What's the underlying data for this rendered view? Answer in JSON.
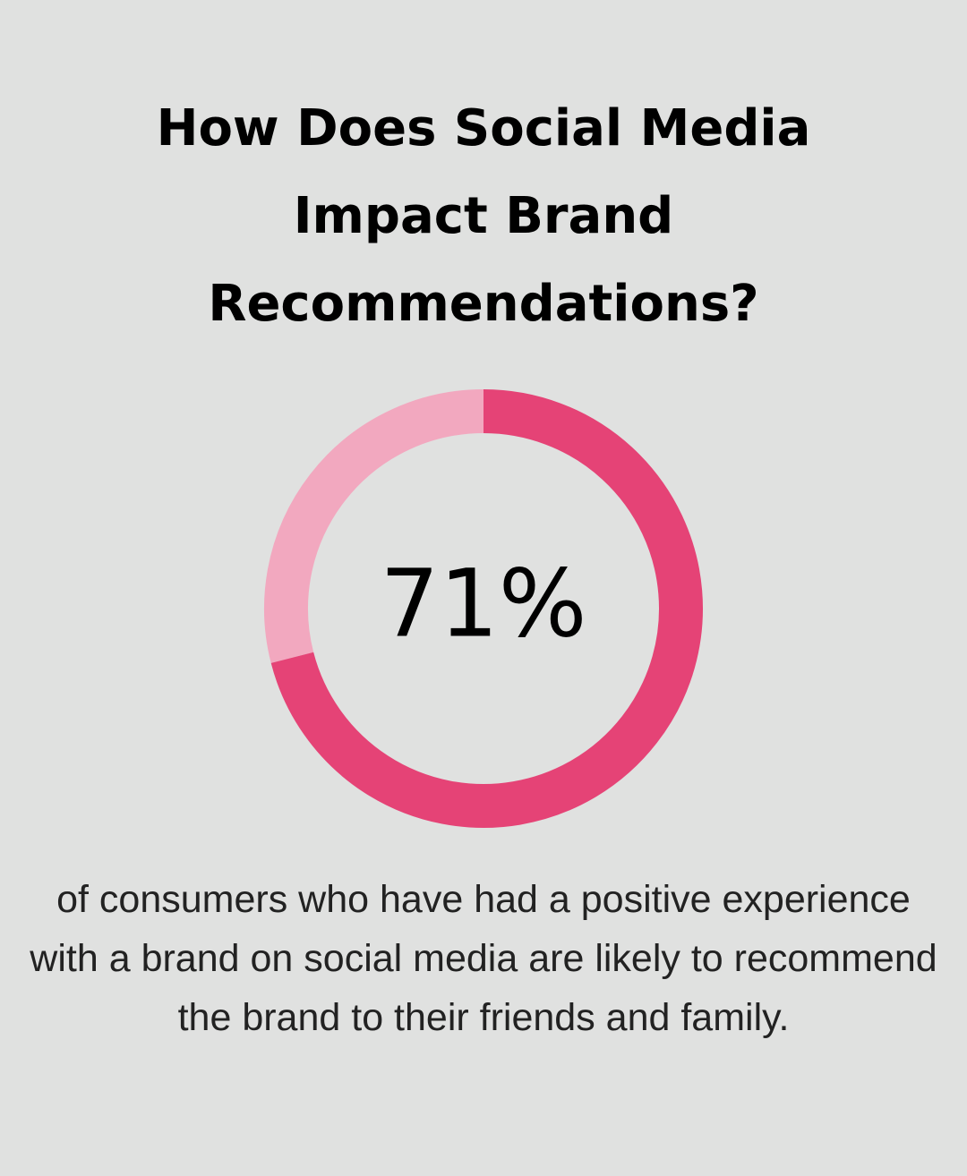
{
  "chart_data": {
    "type": "donut",
    "title": "How Does Social Media Impact Brand Recommendations?",
    "caption": "of consumers who have had a positive experience with a brand on social media are likely to recommend the brand to their friends and family.",
    "values": [
      71,
      29
    ],
    "value_labels": [
      "71%",
      null
    ],
    "colors": [
      "#e54376",
      "#f2a8bf"
    ]
  }
}
